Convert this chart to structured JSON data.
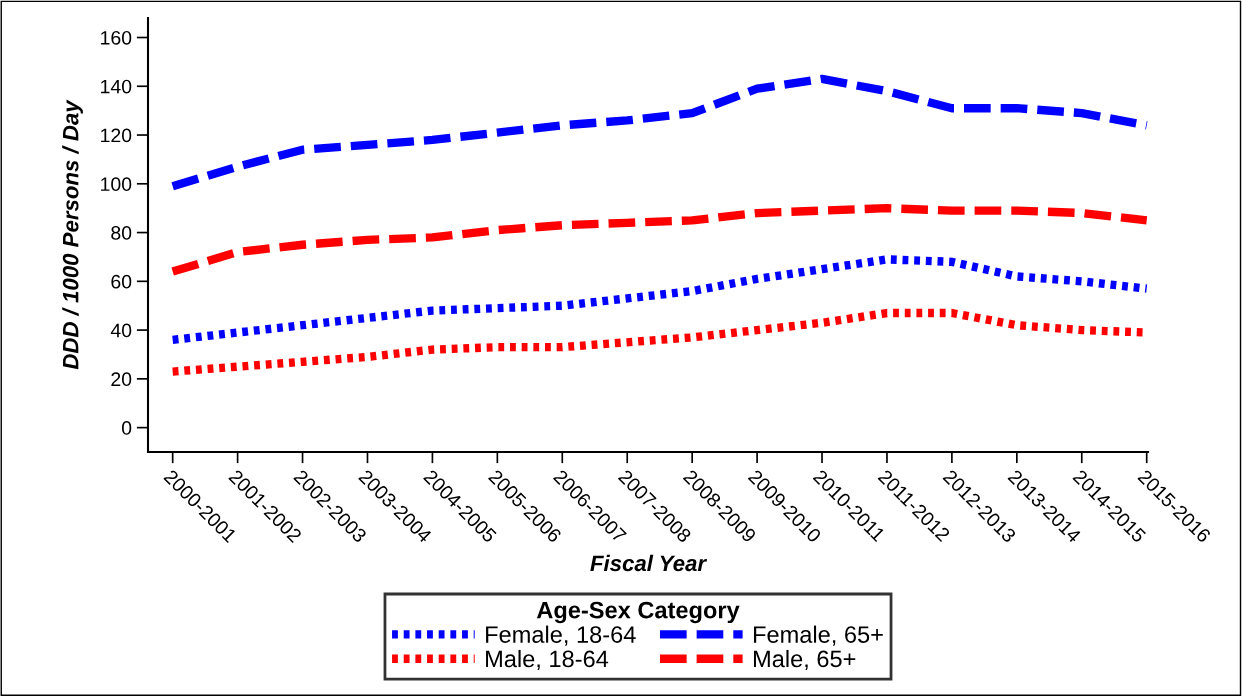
{
  "chart_data": {
    "type": "line",
    "xlabel": "Fiscal Year",
    "ylabel": "DDD / 1000 Persons / Day",
    "legend_title": "Age-Sex Category",
    "categories": [
      "2000-2001",
      "2001-2002",
      "2002-2003",
      "2003-2004",
      "2004-2005",
      "2005-2006",
      "2006-2007",
      "2007-2008",
      "2008-2009",
      "2009-2010",
      "2010-2011",
      "2011-2012",
      "2012-2013",
      "2013-2014",
      "2014-2015",
      "2015-2016"
    ],
    "series": [
      {
        "name": "Female, 18-64",
        "color": "#0000ff",
        "line_style": "dotted",
        "values": [
          36,
          39,
          42,
          45,
          48,
          49,
          50,
          53,
          56,
          61,
          65,
          69,
          68,
          62,
          60,
          57
        ]
      },
      {
        "name": "Male, 18-64",
        "color": "#ff0000",
        "line_style": "dotted",
        "values": [
          23,
          25,
          27,
          29,
          32,
          33,
          33,
          35,
          37,
          40,
          43,
          47,
          47,
          42,
          40,
          39
        ]
      },
      {
        "name": "Female, 65+",
        "color": "#0000ff",
        "line_style": "dashed",
        "values": [
          99,
          107,
          114,
          116,
          118,
          121,
          124,
          126,
          129,
          139,
          143,
          138,
          131,
          131,
          129,
          124
        ]
      },
      {
        "name": "Male, 65+",
        "color": "#ff0000",
        "line_style": "dashed",
        "values": [
          64,
          72,
          75,
          77,
          78,
          81,
          83,
          84,
          85,
          88,
          89,
          90,
          89,
          89,
          88,
          85
        ]
      }
    ],
    "ylim": [
      -10,
      168
    ],
    "yticks": [
      0,
      20,
      40,
      60,
      80,
      100,
      120,
      140,
      160
    ],
    "grid": false,
    "legend": "bottom",
    "marker": "none"
  }
}
